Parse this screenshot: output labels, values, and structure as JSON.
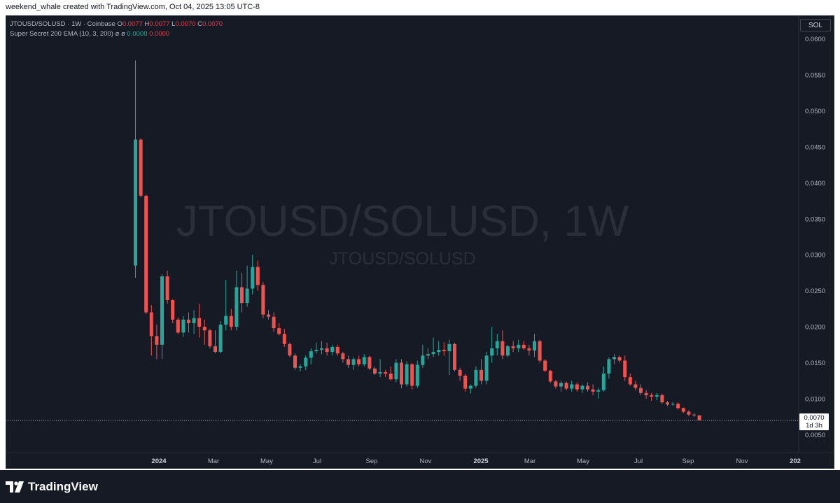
{
  "header": {
    "attribution": "weekend_whale created with TradingView.com, Oct 04, 2025 13:05 UTC-8"
  },
  "legend": {
    "symbol": "JTOUSD/SOLUSD · 1W · Coinbase",
    "o_label": "O",
    "o_value": "0.0077",
    "h_label": "H",
    "h_value": "0.0077",
    "l_label": "L",
    "l_value": "0.0070",
    "c_label": "C",
    "c_value": "0.0070",
    "indicator": "Super Secret 200 EMA (10, 3, 200)",
    "ind_sym1": "ø",
    "ind_sym2": "ø",
    "ind_v1": "0.0000",
    "ind_v2": "0.0000"
  },
  "unit_button": "SOL",
  "watermark": {
    "line1": "JTOUSD/SOLUSD, 1W",
    "line2": "JTOUSD/SOLUSD"
  },
  "last_price": {
    "value": "0.0070",
    "countdown": "1d 3h"
  },
  "footer": {
    "brand": "TradingView"
  },
  "colors": {
    "up": "#26a69a",
    "down": "#ef5350",
    "background": "#161a25",
    "text": "#b2b5be"
  },
  "chart_data": {
    "type": "candlestick",
    "interval": "1W",
    "y_axis": {
      "ticks": [
        "0.0600",
        "0.0550",
        "0.0500",
        "0.0450",
        "0.0400",
        "0.0350",
        "0.0300",
        "0.0250",
        "0.0200",
        "0.0150",
        "0.0100",
        "0.0050"
      ],
      "range": [
        0.003,
        0.062
      ],
      "position": "right"
    },
    "x_axis": {
      "ticks": [
        "2024",
        "Mar",
        "May",
        "Jul",
        "Sep",
        "Nov",
        "2025",
        "Mar",
        "May",
        "Jul",
        "Sep",
        "Nov",
        "202"
      ]
    },
    "candles": [
      {
        "o": 0.0285,
        "h": 0.057,
        "l": 0.0268,
        "c": 0.046
      },
      {
        "o": 0.046,
        "h": 0.0462,
        "l": 0.038,
        "c": 0.0382
      },
      {
        "o": 0.0382,
        "h": 0.0383,
        "l": 0.0218,
        "c": 0.022
      },
      {
        "o": 0.022,
        "h": 0.023,
        "l": 0.016,
        "c": 0.0187
      },
      {
        "o": 0.0187,
        "h": 0.0203,
        "l": 0.0155,
        "c": 0.0175
      },
      {
        "o": 0.0175,
        "h": 0.0273,
        "l": 0.0155,
        "c": 0.027
      },
      {
        "o": 0.027,
        "h": 0.0278,
        "l": 0.0232,
        "c": 0.0237
      },
      {
        "o": 0.0237,
        "h": 0.0238,
        "l": 0.0205,
        "c": 0.021
      },
      {
        "o": 0.021,
        "h": 0.0213,
        "l": 0.019,
        "c": 0.0192
      },
      {
        "o": 0.0192,
        "h": 0.0215,
        "l": 0.0186,
        "c": 0.021
      },
      {
        "o": 0.021,
        "h": 0.022,
        "l": 0.0192,
        "c": 0.0205
      },
      {
        "o": 0.0205,
        "h": 0.0223,
        "l": 0.019,
        "c": 0.0212
      },
      {
        "o": 0.0212,
        "h": 0.0232,
        "l": 0.0185,
        "c": 0.02
      },
      {
        "o": 0.02,
        "h": 0.021,
        "l": 0.0175,
        "c": 0.0195
      },
      {
        "o": 0.0195,
        "h": 0.0197,
        "l": 0.017,
        "c": 0.0173
      },
      {
        "o": 0.0173,
        "h": 0.0195,
        "l": 0.0163,
        "c": 0.0165
      },
      {
        "o": 0.0165,
        "h": 0.0208,
        "l": 0.0163,
        "c": 0.0203
      },
      {
        "o": 0.0203,
        "h": 0.0265,
        "l": 0.0195,
        "c": 0.0215
      },
      {
        "o": 0.0215,
        "h": 0.0225,
        "l": 0.0195,
        "c": 0.02
      },
      {
        "o": 0.02,
        "h": 0.0278,
        "l": 0.0195,
        "c": 0.0255
      },
      {
        "o": 0.0255,
        "h": 0.0275,
        "l": 0.022,
        "c": 0.0233
      },
      {
        "o": 0.0233,
        "h": 0.0285,
        "l": 0.0228,
        "c": 0.0253
      },
      {
        "o": 0.0253,
        "h": 0.03,
        "l": 0.0245,
        "c": 0.0283
      },
      {
        "o": 0.0283,
        "h": 0.0292,
        "l": 0.025,
        "c": 0.0258
      },
      {
        "o": 0.0258,
        "h": 0.0262,
        "l": 0.0212,
        "c": 0.0217
      },
      {
        "o": 0.0217,
        "h": 0.0223,
        "l": 0.021,
        "c": 0.0214
      },
      {
        "o": 0.0214,
        "h": 0.022,
        "l": 0.0193,
        "c": 0.0198
      },
      {
        "o": 0.0198,
        "h": 0.0205,
        "l": 0.0188,
        "c": 0.019
      },
      {
        "o": 0.019,
        "h": 0.0197,
        "l": 0.0172,
        "c": 0.0176
      },
      {
        "o": 0.0176,
        "h": 0.0178,
        "l": 0.0158,
        "c": 0.016
      },
      {
        "o": 0.016,
        "h": 0.0163,
        "l": 0.014,
        "c": 0.0143
      },
      {
        "o": 0.0143,
        "h": 0.0148,
        "l": 0.0138,
        "c": 0.0145
      },
      {
        "o": 0.0145,
        "h": 0.016,
        "l": 0.014,
        "c": 0.0157
      },
      {
        "o": 0.0157,
        "h": 0.017,
        "l": 0.0148,
        "c": 0.0166
      },
      {
        "o": 0.0166,
        "h": 0.0178,
        "l": 0.0163,
        "c": 0.0168
      },
      {
        "o": 0.0168,
        "h": 0.018,
        "l": 0.0162,
        "c": 0.017
      },
      {
        "o": 0.017,
        "h": 0.0178,
        "l": 0.016,
        "c": 0.0165
      },
      {
        "o": 0.0165,
        "h": 0.0175,
        "l": 0.016,
        "c": 0.0172
      },
      {
        "o": 0.0172,
        "h": 0.0175,
        "l": 0.016,
        "c": 0.0163
      },
      {
        "o": 0.0163,
        "h": 0.0165,
        "l": 0.015,
        "c": 0.0155
      },
      {
        "o": 0.0155,
        "h": 0.016,
        "l": 0.0143,
        "c": 0.0147
      },
      {
        "o": 0.0147,
        "h": 0.0158,
        "l": 0.014,
        "c": 0.0155
      },
      {
        "o": 0.0155,
        "h": 0.016,
        "l": 0.0145,
        "c": 0.0148
      },
      {
        "o": 0.0148,
        "h": 0.0162,
        "l": 0.0145,
        "c": 0.0158
      },
      {
        "o": 0.0158,
        "h": 0.016,
        "l": 0.014,
        "c": 0.0142
      },
      {
        "o": 0.0142,
        "h": 0.0145,
        "l": 0.0133,
        "c": 0.0135
      },
      {
        "o": 0.0135,
        "h": 0.0155,
        "l": 0.013,
        "c": 0.0137
      },
      {
        "o": 0.0137,
        "h": 0.014,
        "l": 0.013,
        "c": 0.0135
      },
      {
        "o": 0.0135,
        "h": 0.0145,
        "l": 0.0125,
        "c": 0.0127
      },
      {
        "o": 0.0127,
        "h": 0.0155,
        "l": 0.0123,
        "c": 0.015
      },
      {
        "o": 0.015,
        "h": 0.0155,
        "l": 0.0115,
        "c": 0.012
      },
      {
        "o": 0.012,
        "h": 0.0152,
        "l": 0.0117,
        "c": 0.0148
      },
      {
        "o": 0.0148,
        "h": 0.015,
        "l": 0.0113,
        "c": 0.0118
      },
      {
        "o": 0.0118,
        "h": 0.0153,
        "l": 0.0115,
        "c": 0.0147
      },
      {
        "o": 0.0147,
        "h": 0.0175,
        "l": 0.0143,
        "c": 0.016
      },
      {
        "o": 0.016,
        "h": 0.017,
        "l": 0.0155,
        "c": 0.0162
      },
      {
        "o": 0.0162,
        "h": 0.0185,
        "l": 0.0158,
        "c": 0.0165
      },
      {
        "o": 0.0165,
        "h": 0.018,
        "l": 0.016,
        "c": 0.0168
      },
      {
        "o": 0.0168,
        "h": 0.0178,
        "l": 0.016,
        "c": 0.0166
      },
      {
        "o": 0.0166,
        "h": 0.0182,
        "l": 0.0133,
        "c": 0.0176
      },
      {
        "o": 0.0176,
        "h": 0.0178,
        "l": 0.0138,
        "c": 0.014
      },
      {
        "o": 0.014,
        "h": 0.0143,
        "l": 0.0125,
        "c": 0.0132
      },
      {
        "o": 0.0132,
        "h": 0.0135,
        "l": 0.011,
        "c": 0.0114
      },
      {
        "o": 0.0114,
        "h": 0.012,
        "l": 0.0107,
        "c": 0.0118
      },
      {
        "o": 0.0118,
        "h": 0.0145,
        "l": 0.0115,
        "c": 0.014
      },
      {
        "o": 0.014,
        "h": 0.0155,
        "l": 0.012,
        "c": 0.0125
      },
      {
        "o": 0.0125,
        "h": 0.0165,
        "l": 0.012,
        "c": 0.016
      },
      {
        "o": 0.016,
        "h": 0.02,
        "l": 0.015,
        "c": 0.017
      },
      {
        "o": 0.017,
        "h": 0.019,
        "l": 0.016,
        "c": 0.018
      },
      {
        "o": 0.018,
        "h": 0.0195,
        "l": 0.0155,
        "c": 0.016
      },
      {
        "o": 0.016,
        "h": 0.0175,
        "l": 0.0158,
        "c": 0.0173
      },
      {
        "o": 0.0173,
        "h": 0.018,
        "l": 0.0165,
        "c": 0.017
      },
      {
        "o": 0.017,
        "h": 0.0182,
        "l": 0.0165,
        "c": 0.0175
      },
      {
        "o": 0.0175,
        "h": 0.018,
        "l": 0.0168,
        "c": 0.017
      },
      {
        "o": 0.017,
        "h": 0.0175,
        "l": 0.016,
        "c": 0.0167
      },
      {
        "o": 0.0167,
        "h": 0.019,
        "l": 0.0158,
        "c": 0.018
      },
      {
        "o": 0.018,
        "h": 0.0182,
        "l": 0.015,
        "c": 0.0153
      },
      {
        "o": 0.0153,
        "h": 0.0155,
        "l": 0.0137,
        "c": 0.0139
      },
      {
        "o": 0.0139,
        "h": 0.014,
        "l": 0.0122,
        "c": 0.0124
      },
      {
        "o": 0.0124,
        "h": 0.0126,
        "l": 0.0114,
        "c": 0.0117
      },
      {
        "o": 0.0117,
        "h": 0.0125,
        "l": 0.011,
        "c": 0.0122
      },
      {
        "o": 0.0122,
        "h": 0.0124,
        "l": 0.0112,
        "c": 0.0114
      },
      {
        "o": 0.0114,
        "h": 0.0125,
        "l": 0.011,
        "c": 0.012
      },
      {
        "o": 0.012,
        "h": 0.0123,
        "l": 0.011,
        "c": 0.0113
      },
      {
        "o": 0.0113,
        "h": 0.012,
        "l": 0.0108,
        "c": 0.0118
      },
      {
        "o": 0.0118,
        "h": 0.0123,
        "l": 0.011,
        "c": 0.0113
      },
      {
        "o": 0.0113,
        "h": 0.012,
        "l": 0.0105,
        "c": 0.011
      },
      {
        "o": 0.011,
        "h": 0.0115,
        "l": 0.01,
        "c": 0.0112
      },
      {
        "o": 0.0112,
        "h": 0.0145,
        "l": 0.011,
        "c": 0.0135
      },
      {
        "o": 0.0135,
        "h": 0.0158,
        "l": 0.0128,
        "c": 0.0155
      },
      {
        "o": 0.0155,
        "h": 0.0162,
        "l": 0.0148,
        "c": 0.0158
      },
      {
        "o": 0.0158,
        "h": 0.016,
        "l": 0.015,
        "c": 0.0153
      },
      {
        "o": 0.0153,
        "h": 0.016,
        "l": 0.0125,
        "c": 0.013
      },
      {
        "o": 0.013,
        "h": 0.0135,
        "l": 0.0118,
        "c": 0.012
      },
      {
        "o": 0.012,
        "h": 0.0125,
        "l": 0.0112,
        "c": 0.0115
      },
      {
        "o": 0.0115,
        "h": 0.012,
        "l": 0.0105,
        "c": 0.0108
      },
      {
        "o": 0.0108,
        "h": 0.0112,
        "l": 0.01,
        "c": 0.0105
      },
      {
        "o": 0.0105,
        "h": 0.0108,
        "l": 0.0097,
        "c": 0.0103
      },
      {
        "o": 0.0103,
        "h": 0.0108,
        "l": 0.0098,
        "c": 0.0105
      },
      {
        "o": 0.0105,
        "h": 0.0107,
        "l": 0.0093,
        "c": 0.0095
      },
      {
        "o": 0.0095,
        "h": 0.0097,
        "l": 0.009,
        "c": 0.0092
      },
      {
        "o": 0.0092,
        "h": 0.0095,
        "l": 0.009,
        "c": 0.0093
      },
      {
        "o": 0.0093,
        "h": 0.0095,
        "l": 0.0085,
        "c": 0.0087
      },
      {
        "o": 0.0087,
        "h": 0.0088,
        "l": 0.008,
        "c": 0.0082
      },
      {
        "o": 0.0082,
        "h": 0.0084,
        "l": 0.0076,
        "c": 0.0078
      },
      {
        "o": 0.0078,
        "h": 0.008,
        "l": 0.0075,
        "c": 0.0077
      },
      {
        "o": 0.0077,
        "h": 0.0077,
        "l": 0.007,
        "c": 0.007
      }
    ]
  }
}
